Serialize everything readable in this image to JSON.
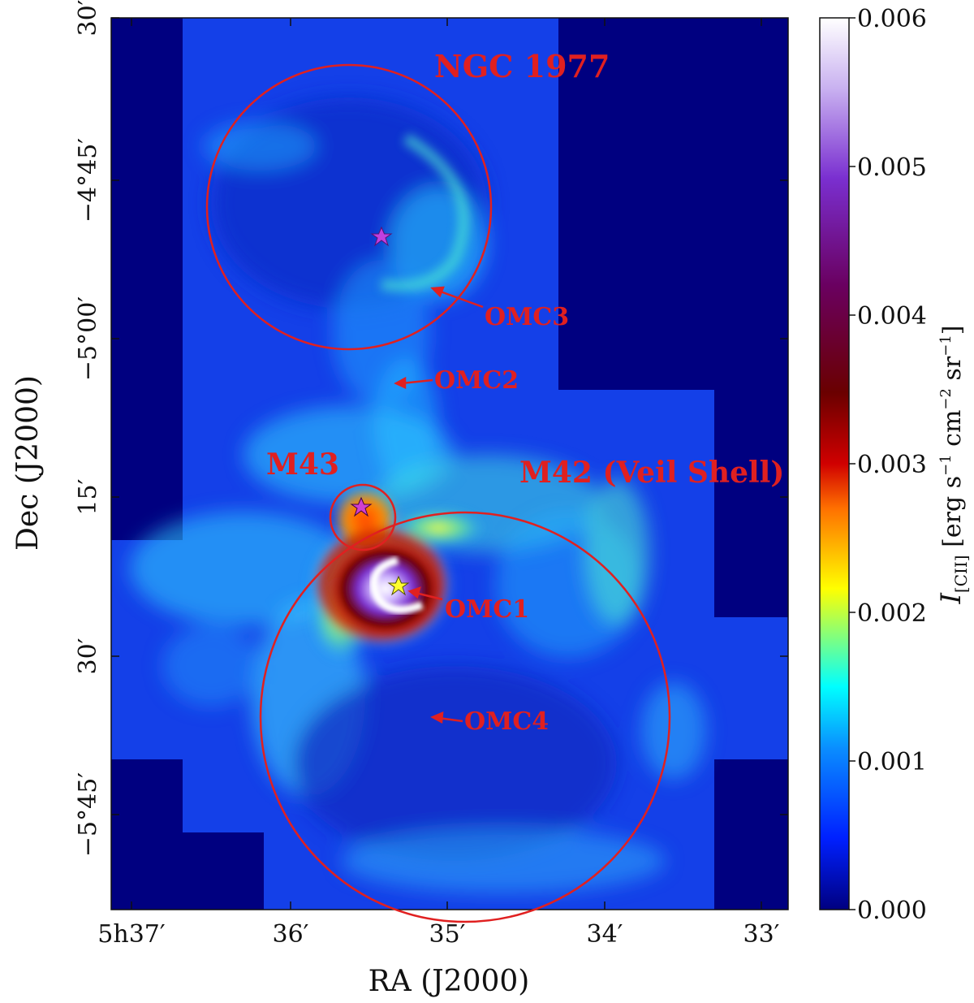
{
  "image": {
    "description_note": "",
    "xlabel": "RA (J2000)",
    "ylabel": "Dec (J2000)",
    "x_ticks": [
      "5h37′",
      "36′",
      "35′",
      "34′",
      "33′"
    ],
    "y_ticks": [
      "30′",
      "−4°45′",
      "−5°00′",
      "15′",
      "30′",
      "−5°45′"
    ]
  },
  "colorbar": {
    "label": "I[CII] [erg s⁻¹ cm⁻² sr⁻¹]",
    "label_main": "I",
    "label_sub": "[CII]",
    "label_units": " [erg s",
    "label_units2": " cm",
    "label_units3": " sr",
    "label_exp1": "−1",
    "label_exp2": "−2",
    "label_exp3": "−1",
    "label_close": "]",
    "ticks": [
      "0.006",
      "0.005",
      "0.004",
      "0.003",
      "0.002",
      "0.001",
      "0.000"
    ],
    "colors": [
      "#ffffff",
      "#7a2fd0",
      "#6a0000",
      "#ff6a00",
      "#ffff00",
      "#00e0e0",
      "#0a5aff",
      "#000080"
    ]
  },
  "annotations": {
    "ngc1977": "NGC 1977",
    "omc3": "OMC3",
    "omc2": "OMC2",
    "m43": "M43",
    "m42": "M42 (Veil Shell)",
    "omc1": "OMC1",
    "omc4": "OMC4"
  },
  "colors": {
    "background": "#000080",
    "annotation": "#e02020",
    "star_magenta": "#c040e0",
    "star_yellow": "#ffff30"
  }
}
